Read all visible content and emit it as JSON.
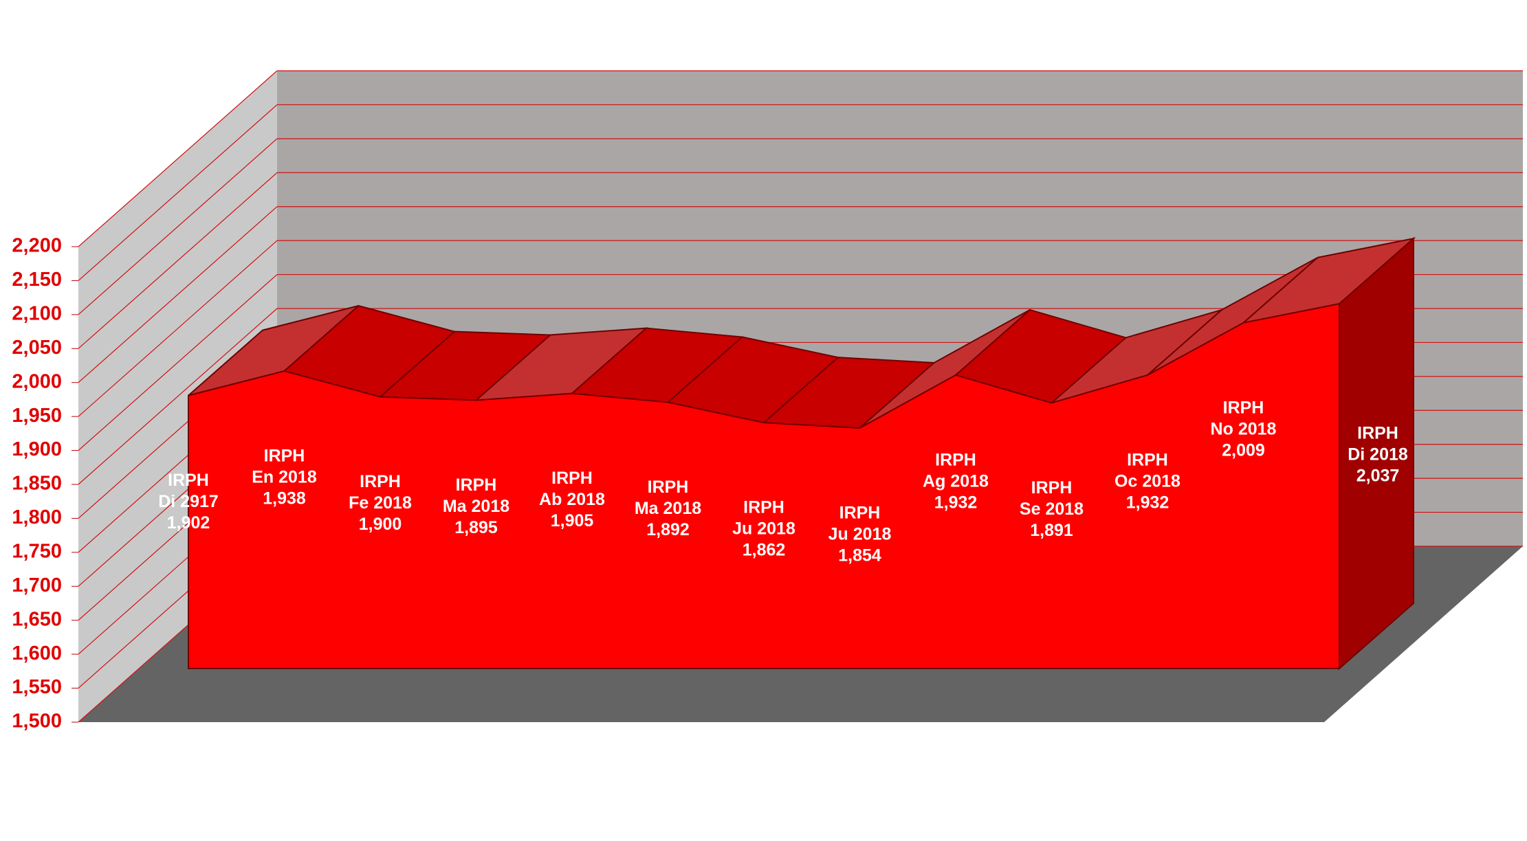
{
  "chart_data": {
    "type": "area3d",
    "categories": [
      "Di 2917",
      "En 2018",
      "Fe 2018",
      "Ma 2018",
      "Ab 2018",
      "Ma 2018",
      "Ju 2018",
      "Ju 2018",
      "Ag 2018",
      "Se 2018",
      "Oc 2018",
      "No 2018",
      "Di 2018"
    ],
    "series": [
      {
        "name": "IRPH",
        "color": "#ff0000",
        "values": [
          1902,
          1938,
          1900,
          1895,
          1905,
          1892,
          1862,
          1854,
          1932,
          1891,
          1932,
          2009,
          2037
        ],
        "value_labels": [
          "1,902",
          "1,938",
          "1,900",
          "1,895",
          "1,905",
          "1,892",
          "1,862",
          "1,854",
          "1,932",
          "1,891",
          "1,932",
          "2,009",
          "2,037"
        ]
      }
    ],
    "ylim": [
      1500,
      2200
    ],
    "yticks": [
      {
        "value": 1500,
        "label": "1,500"
      },
      {
        "value": 1550,
        "label": "1,550"
      },
      {
        "value": 1600,
        "label": "1,600"
      },
      {
        "value": 1650,
        "label": "1,650"
      },
      {
        "value": 1700,
        "label": "1,700"
      },
      {
        "value": 1750,
        "label": "1,750"
      },
      {
        "value": 1800,
        "label": "1,800"
      },
      {
        "value": 1850,
        "label": "1,850"
      },
      {
        "value": 1900,
        "label": "1,900"
      },
      {
        "value": 1950,
        "label": "1,950"
      },
      {
        "value": 2000,
        "label": "2,000"
      },
      {
        "value": 2050,
        "label": "2,050"
      },
      {
        "value": 2100,
        "label": "2,100"
      },
      {
        "value": 2150,
        "label": "2,150"
      },
      {
        "value": 2200,
        "label": "2,200"
      }
    ],
    "grid": true
  }
}
